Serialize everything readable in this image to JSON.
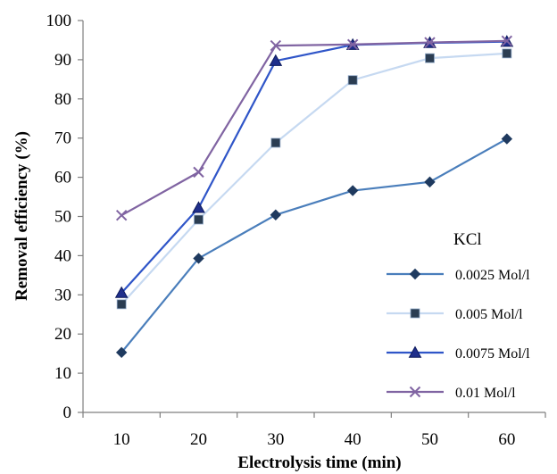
{
  "chart_data": {
    "type": "line",
    "title": "",
    "xlabel": "Electrolysis time (min)",
    "ylabel": "Removal efficiency (%)",
    "x": [
      10,
      20,
      30,
      40,
      50,
      60
    ],
    "ylim": [
      0,
      100
    ],
    "yticks": [
      0,
      10,
      20,
      30,
      40,
      50,
      60,
      70,
      80,
      90,
      100
    ],
    "grid": false,
    "legend_title": "KCl",
    "legend_position": "right",
    "series": [
      {
        "name": "0.0025 Mol/l",
        "values": [
          15.3,
          39.3,
          50.4,
          56.6,
          58.8,
          69.8
        ],
        "color": "#4a7ebb",
        "marker": "diamond"
      },
      {
        "name": "0.005 Mol/l",
        "values": [
          27.6,
          49.2,
          68.8,
          84.8,
          90.4,
          91.6
        ],
        "color": "#c6d9f1",
        "marker": "square"
      },
      {
        "name": "0.0075 Mol/l",
        "values": [
          30.5,
          52.2,
          89.7,
          93.8,
          94.3,
          94.6
        ],
        "color": "#2f55c8",
        "marker": "triangle"
      },
      {
        "name": "0.01 Mol/l",
        "values": [
          50.3,
          61.3,
          93.6,
          93.9,
          94.4,
          94.8
        ],
        "color": "#8064a2",
        "marker": "x"
      }
    ]
  }
}
